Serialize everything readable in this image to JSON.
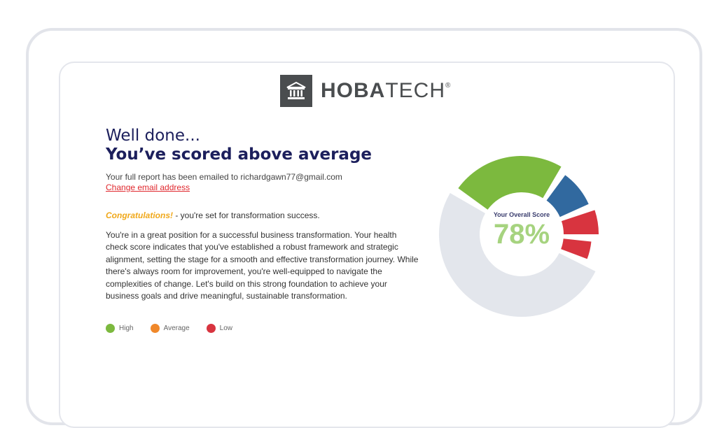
{
  "brand": {
    "name_bold": "HOBA",
    "name_light": "TECH",
    "mark": "®",
    "icon": "bank-building-icon"
  },
  "heading": {
    "line1": "Well done...",
    "line2": "You’ve scored above average"
  },
  "email": {
    "text": "Your full report has been emailed to richardgawn77@gmail.com",
    "change_link": "Change email address"
  },
  "congrats": {
    "highlight": "Congratulations!",
    "rest": " - you're set for transformation success."
  },
  "body": "You're in a great position for a successful business transformation. Your health check score indicates that you've established a robust framework and strategic alignment, setting the stage for a smooth and effective transformation journey. While there's always room for improvement, you're well-equipped to navigate the complexities of change. Let's build on this strong foundation to achieve your business goals and drive meaningful, sustainable transformation.",
  "legend": [
    {
      "label": "High",
      "color": "#7cb93e"
    },
    {
      "label": "Average",
      "color": "#f0882a"
    },
    {
      "label": "Low",
      "color": "#d8343f"
    }
  ],
  "score": {
    "label": "Your Overall Score",
    "value": "78%",
    "color": "#a6d37f"
  },
  "donut_segments": [
    {
      "share": 23,
      "color": "#7cb93e"
    },
    {
      "share": 8,
      "color": "#31699f"
    },
    {
      "share": 5,
      "color": "#d8343f"
    },
    {
      "share": 4,
      "color": "#d8343f"
    },
    {
      "share": 50,
      "color": "#e3e6ec"
    }
  ]
}
